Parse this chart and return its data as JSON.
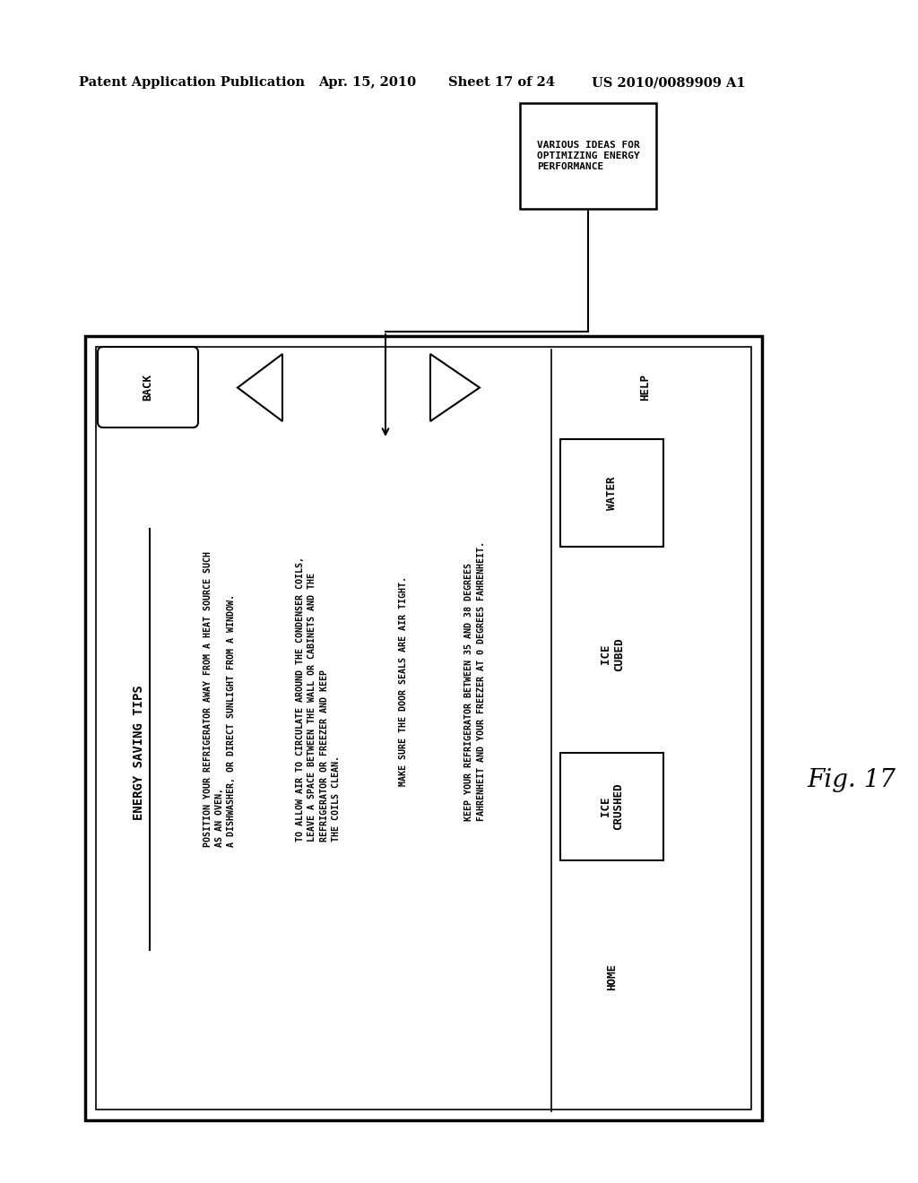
{
  "bg_color": "#ffffff",
  "header_text": "Patent Application Publication",
  "header_date": "Apr. 15, 2010",
  "header_sheet": "Sheet 17 of 24",
  "header_patent": "US 2010/0089909 A1",
  "fig_label": "Fig. 17",
  "top_box_text": "VARIOUS IDEAS FOR\nOPTIMIZING ENERGY\nPERFORMANCE",
  "main_title": "ENERGY SAVING TIPS",
  "back_label": "BACK",
  "help_label": "HELP",
  "home_label": "HOME",
  "ice_crushed_label": "ICE\nCRUSHED",
  "ice_cubed_label": "ICE\nCUBED",
  "water_label": "WATER",
  "tip1": "POSITION YOUR REFRIGERATOR AWAY FROM A HEAT SOURCE SUCH\nAS AN OVEN,\nA DISHWASHER, OR DIRECT SUNLIGHT FROM A WINDOW.",
  "tip2": "TO ALLOW AIR TO CIRCULATE AROUND THE CONDENSER COILS,\nLEAVE A SPACE BETWEEN THE WALL OR CABINETS AND THE\nREFRIGERATOR OR FREEZER AND KEEP\nTHE COILS CLEAN.",
  "tip3": "MAKE SURE THE DOOR SEALS ARE AIR TIGHT.",
  "tip4": "KEEP YOUR REFRIGERATOR BETWEEN 35 AND 38 DEGREES\nFAHRENHEIT AND YOUR FREEZER AT 0 DEGREES FAHRENHEIT."
}
